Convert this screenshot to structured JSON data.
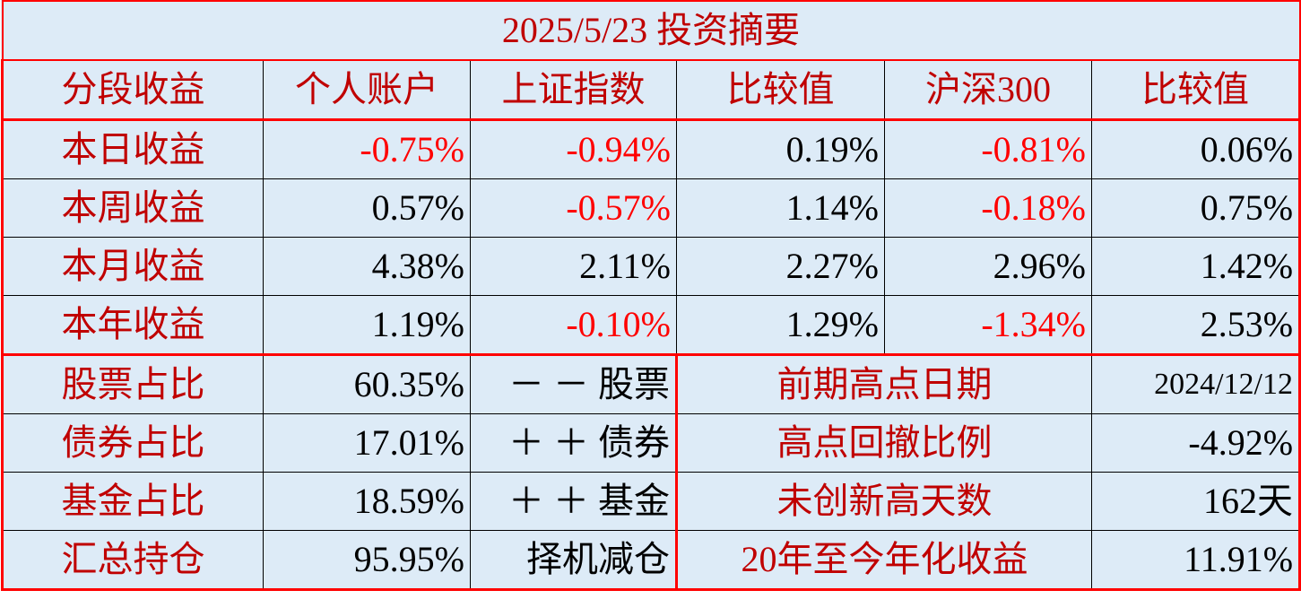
{
  "title": "2025/5/23 投资摘要",
  "colors": {
    "label": "#c00000",
    "negative": "#ff0000",
    "background": "#ddebf7",
    "border_accent": "#ff0000"
  },
  "headers": [
    "分段收益",
    "个人账户",
    "上证指数",
    "比较值",
    "沪深300",
    "比较值"
  ],
  "returns": [
    {
      "label": "本日收益",
      "personal": "-0.75%",
      "sse": "-0.94%",
      "diff1": "0.19%",
      "csi300": "-0.81%",
      "diff2": "0.06%"
    },
    {
      "label": "本周收益",
      "personal": "0.57%",
      "sse": "-0.57%",
      "diff1": "1.14%",
      "csi300": "-0.18%",
      "diff2": "0.75%"
    },
    {
      "label": "本月收益",
      "personal": "4.38%",
      "sse": "2.11%",
      "diff1": "2.27%",
      "csi300": "2.96%",
      "diff2": "1.42%"
    },
    {
      "label": "本年收益",
      "personal": "1.19%",
      "sse": "-0.10%",
      "diff1": "1.29%",
      "csi300": "-1.34%",
      "diff2": "2.53%"
    }
  ],
  "positions": [
    {
      "label": "股票占比",
      "value": "60.35%",
      "action": "－ － 股票",
      "metric": "前期高点日期",
      "metric_value": "2024/12/12"
    },
    {
      "label": "债券占比",
      "value": "17.01%",
      "action": "＋ ＋ 债券",
      "metric": "高点回撤比例",
      "metric_value": "-4.92%"
    },
    {
      "label": "基金占比",
      "value": "18.59%",
      "action": "＋ ＋ 基金",
      "metric": "未创新高天数",
      "metric_value": "162天"
    },
    {
      "label": "汇总持仓",
      "value": "95.95%",
      "action": "择机减仓",
      "metric": "20年至今年化收益",
      "metric_value": "11.91%"
    }
  ]
}
